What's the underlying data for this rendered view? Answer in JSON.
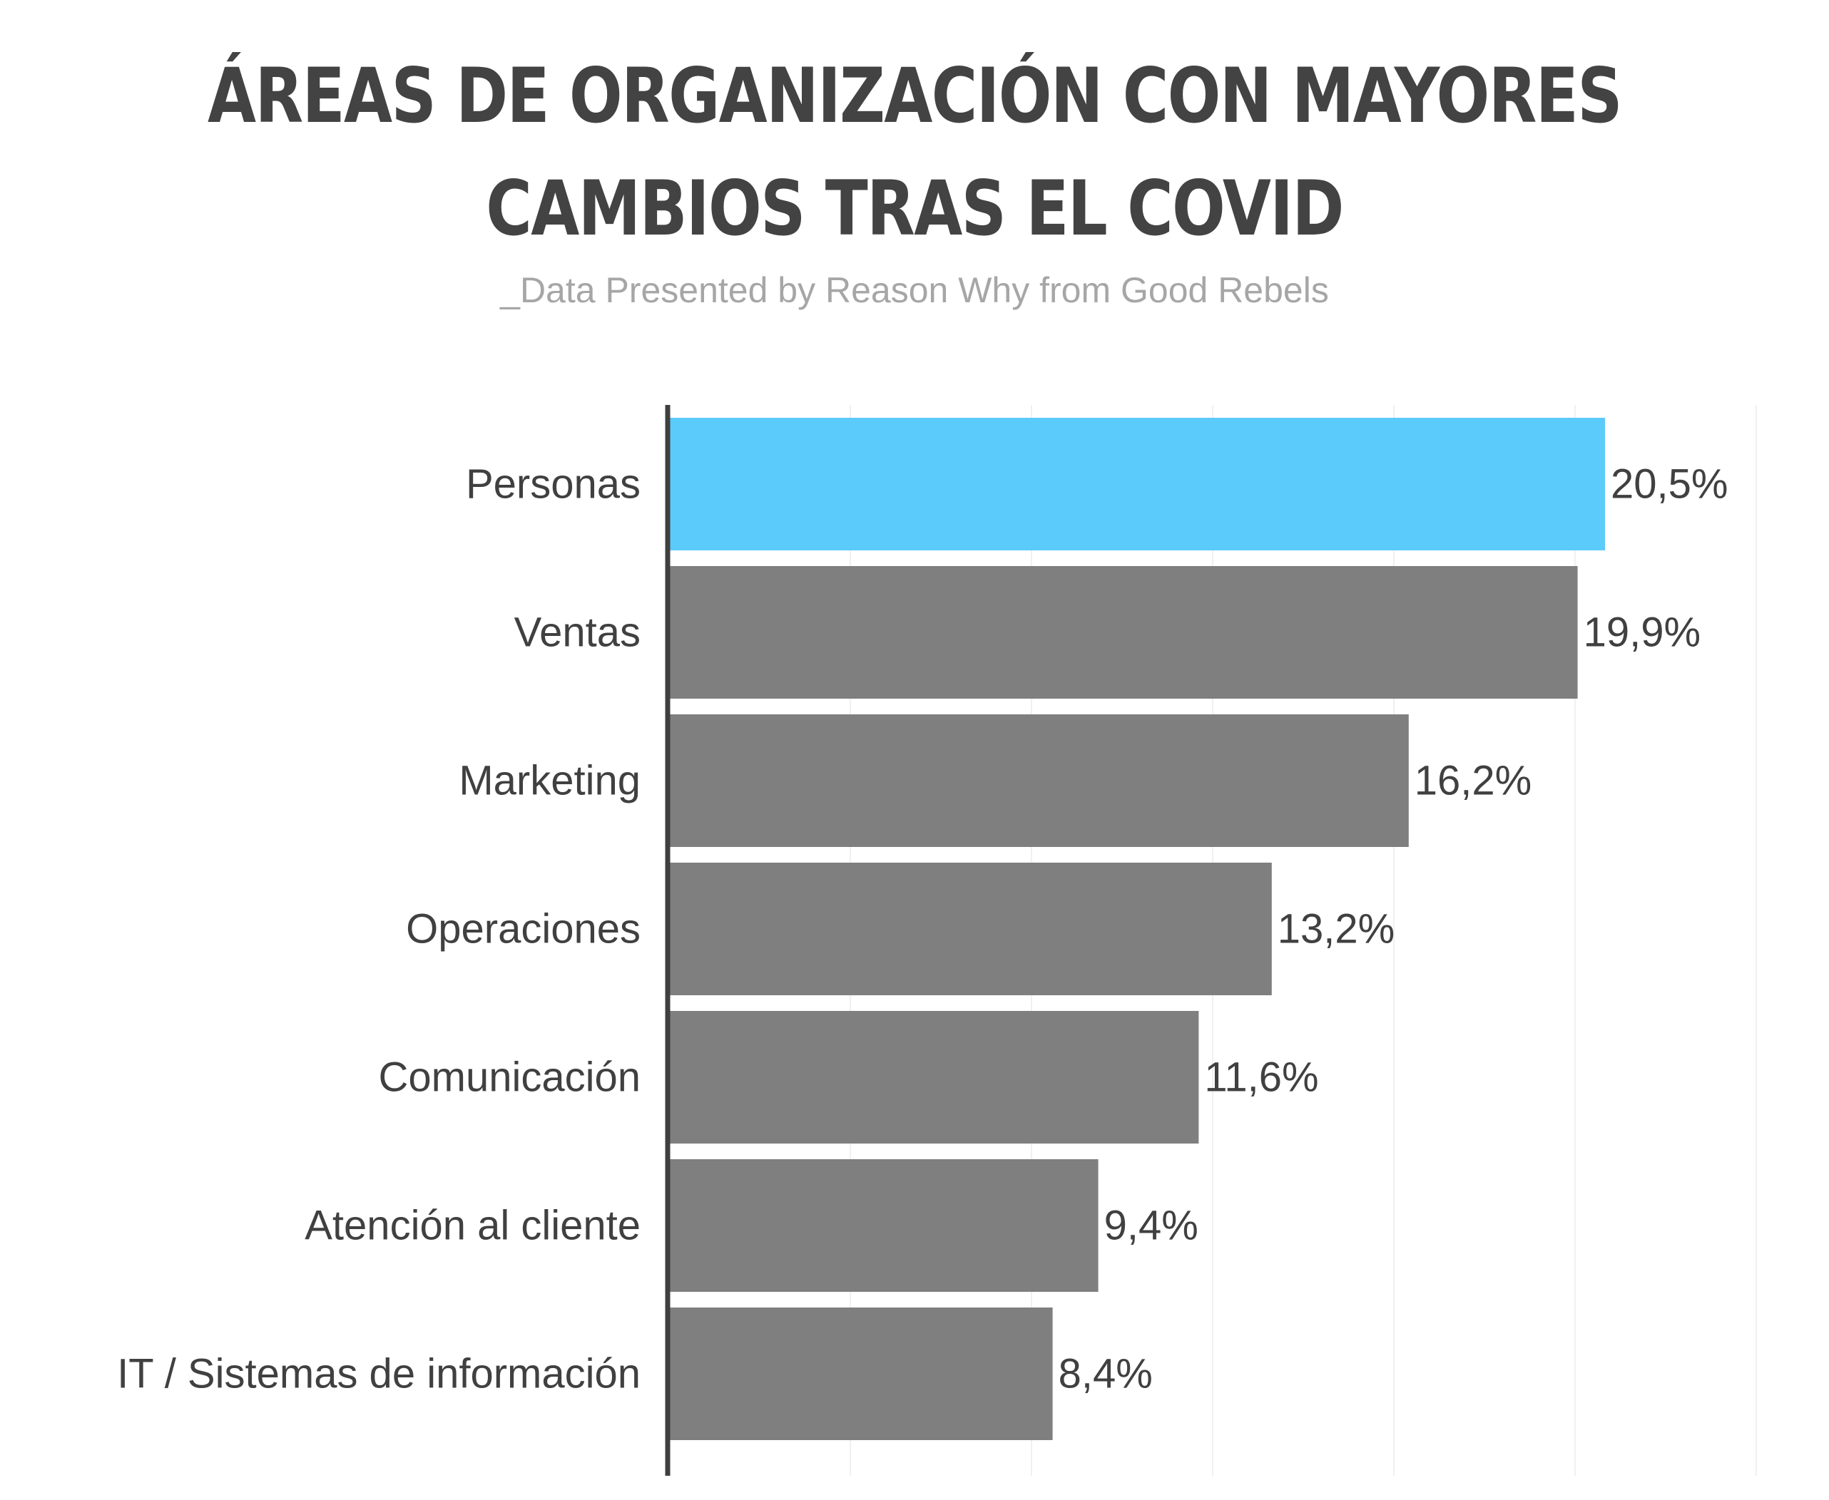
{
  "header": {
    "title_line1": "ÁREAS DE ORGANIZACIÓN CON MAYORES",
    "title_line2": "CAMBIOS TRAS EL COVID",
    "subtitle": "_Data Presented by Reason Why from Good Rebels"
  },
  "colors": {
    "highlight": "#5bcbfb",
    "bar": "#7f7f7f",
    "axis": "#3f3f3f",
    "label": "#404040",
    "grid": "#f0f0f0"
  },
  "chart_data": {
    "type": "bar",
    "orientation": "horizontal",
    "categories": [
      "Personas",
      "Ventas",
      "Marketing",
      "Operaciones",
      "Comunicación",
      "Atención al cliente",
      "IT / Sistemas de información"
    ],
    "values": [
      20.5,
      19.9,
      16.2,
      13.2,
      11.6,
      9.4,
      8.4
    ],
    "value_labels": [
      "20,5%",
      "19,9%",
      "16,2%",
      "13,2%",
      "11,6%",
      "9,4%",
      "8,4%"
    ],
    "highlight_index": 0,
    "title": "ÁREAS DE ORGANIZACIÓN CON MAYORES CAMBIOS TRAS EL COVID",
    "subtitle": "_Data Presented by Reason Why from Good Rebels",
    "xlim": [
      0,
      24
    ],
    "grid": true,
    "legend": "none"
  }
}
